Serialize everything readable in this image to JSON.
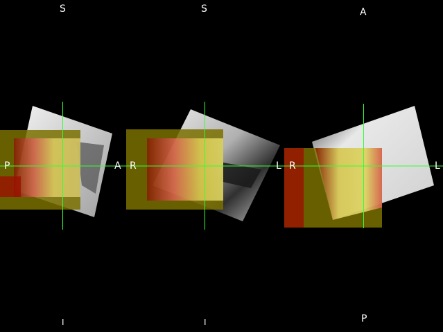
{
  "viewer": {
    "background": "#000000",
    "crosshair_color": "#33ff33",
    "overlay_colormap": [
      "#7a7000",
      "#9a1000",
      "#c81818",
      "#f06060",
      "#f4e060",
      "#ffff90"
    ],
    "panels": [
      {
        "name": "sagittal",
        "top_label": "S",
        "bottom_label": "I",
        "left_label": "P",
        "right_label": "A"
      },
      {
        "name": "coronal",
        "top_label": "S",
        "bottom_label": "I",
        "left_label": "R",
        "right_label": "L"
      },
      {
        "name": "axial",
        "top_label": "A",
        "bottom_label": "P",
        "left_label": "R",
        "right_label": "L"
      }
    ]
  }
}
